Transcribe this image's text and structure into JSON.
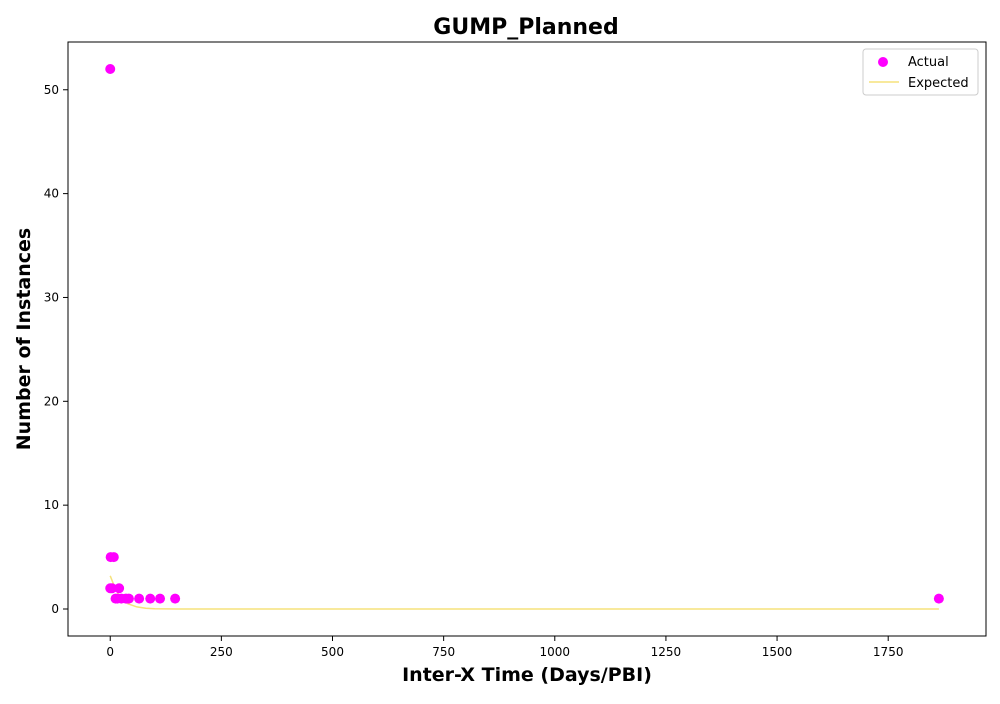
{
  "chart_data": {
    "type": "scatter",
    "title": "GUMP_Planned",
    "xlabel": "Inter-X Time (Days/PBI)",
    "ylabel": "Number of Instances",
    "xlim": [
      -95,
      1970
    ],
    "ylim": [
      -2.6,
      54.6
    ],
    "xticks": [
      0,
      250,
      500,
      750,
      1000,
      1250,
      1500,
      1750
    ],
    "xtick_labels": [
      "0",
      "250",
      "500",
      "750",
      "1000",
      "1250",
      "1500",
      "1750"
    ],
    "yticks": [
      0,
      10,
      20,
      30,
      40,
      50
    ],
    "ytick_labels": [
      "0",
      "10",
      "20",
      "30",
      "40",
      "50"
    ],
    "grid": false,
    "legend_position": "top-right",
    "series": [
      {
        "name": "Actual",
        "kind": "scatter",
        "color": "#ff00ff",
        "points": [
          [
            0,
            52
          ],
          [
            0,
            2
          ],
          [
            1,
            5
          ],
          [
            4,
            2
          ],
          [
            8,
            5
          ],
          [
            12,
            1
          ],
          [
            16,
            1
          ],
          [
            20,
            2
          ],
          [
            25,
            1
          ],
          [
            35,
            1
          ],
          [
            42,
            1
          ],
          [
            65,
            1
          ],
          [
            90,
            1
          ],
          [
            112,
            1
          ],
          [
            146,
            1
          ],
          [
            1864,
            1
          ]
        ]
      },
      {
        "name": "Expected",
        "kind": "line",
        "color": "#f5e27c",
        "points": [
          [
            0,
            3.2
          ],
          [
            10,
            2.1
          ],
          [
            20,
            1.3
          ],
          [
            30,
            0.8
          ],
          [
            40,
            0.5
          ],
          [
            60,
            0.2
          ],
          [
            80,
            0.08
          ],
          [
            100,
            0.03
          ],
          [
            150,
            0
          ],
          [
            400,
            0
          ],
          [
            1000,
            0
          ],
          [
            1864,
            0
          ]
        ]
      }
    ]
  }
}
